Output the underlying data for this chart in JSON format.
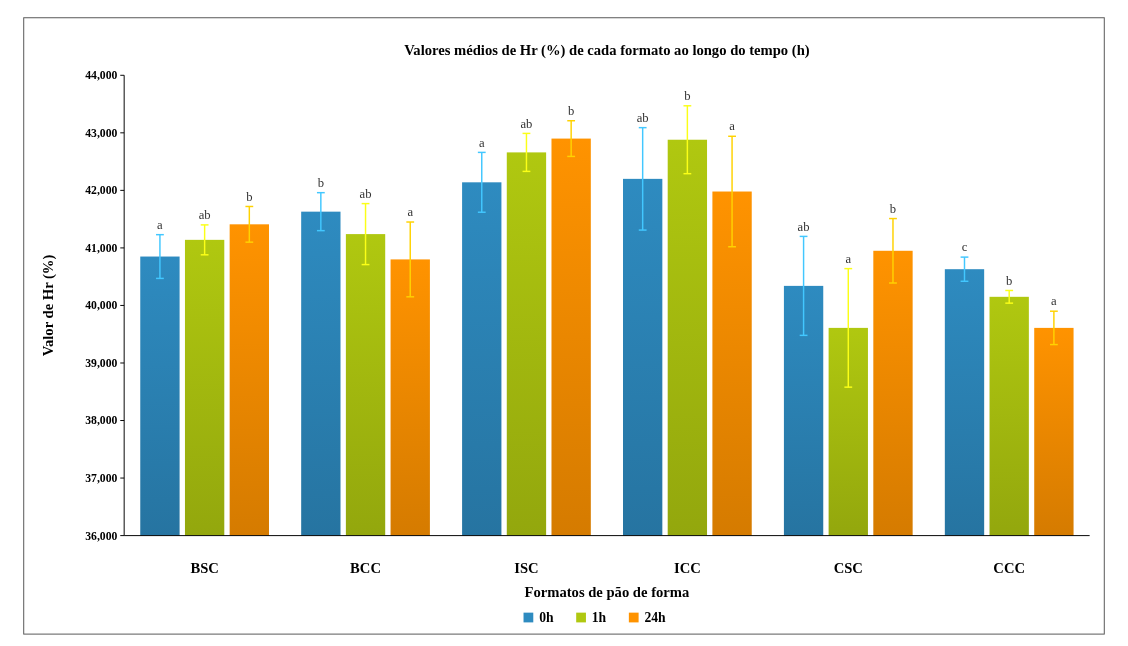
{
  "chart_data": {
    "type": "bar",
    "title": "Valores médios de Hr (%) de cada formato ao longo do tempo (h)",
    "xlabel": "Formatos de pão de forma",
    "ylabel": "Valor de Hr (%)",
    "categories": [
      "BSC",
      "BCC",
      "ISC",
      "ICC",
      "CSC",
      "CCC"
    ],
    "series": [
      {
        "name": "0h",
        "color": "#2e8bc0",
        "values": [
          40850,
          41630,
          42140,
          42200,
          40340,
          40630
        ],
        "errors": [
          380,
          330,
          520,
          890,
          860,
          210
        ]
      },
      {
        "name": "1h",
        "color": "#b0c810",
        "values": [
          41140,
          41240,
          42660,
          42880,
          39610,
          40150
        ],
        "errors": [
          260,
          530,
          330,
          590,
          1030,
          110
        ]
      },
      {
        "name": "24h",
        "color": "#ff9300",
        "values": [
          41410,
          40800,
          42900,
          41980,
          40950,
          39610
        ],
        "errors": [
          310,
          650,
          310,
          960,
          560,
          290
        ]
      }
    ],
    "annotations": [
      "a",
      "ab",
      "b",
      "b",
      "ab",
      "a",
      "a",
      "ab",
      "b",
      "ab",
      "b",
      "a",
      "ab",
      "a",
      "b",
      "c",
      "b",
      "a"
    ],
    "ylim": [
      36000,
      44000
    ],
    "yticks": [
      {
        "value": 36000,
        "label": "36,000"
      },
      {
        "value": 37000,
        "label": "37,000"
      },
      {
        "value": 38000,
        "label": "38,000"
      },
      {
        "value": 39000,
        "label": "39,000"
      },
      {
        "value": 40000,
        "label": "40,000"
      },
      {
        "value": 41000,
        "label": "41,000"
      },
      {
        "value": 42000,
        "label": "42,000"
      },
      {
        "value": 43000,
        "label": "43,000"
      },
      {
        "value": 44000,
        "label": "44,000"
      }
    ],
    "grid": false,
    "legend": "bottom"
  }
}
